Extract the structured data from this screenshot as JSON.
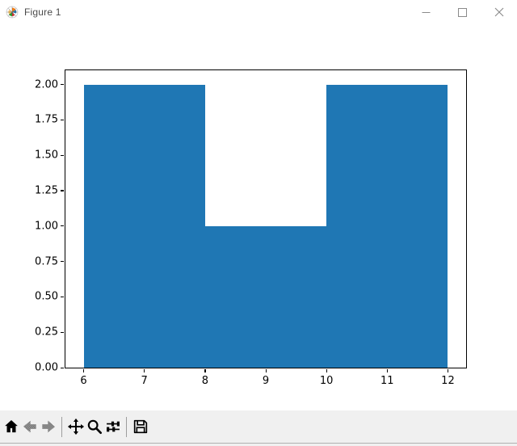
{
  "window": {
    "title": "Figure 1",
    "controls": [
      {
        "name": "minimize"
      },
      {
        "name": "maximize"
      },
      {
        "name": "close"
      }
    ]
  },
  "chart_data": {
    "type": "bar",
    "title": "",
    "xlabel": "",
    "ylabel": "",
    "bars": [
      {
        "x0": 6,
        "x1": 8,
        "value": 2
      },
      {
        "x0": 8,
        "x1": 10,
        "value": 1
      },
      {
        "x0": 10,
        "x1": 12,
        "value": 2
      }
    ],
    "x_tick_values": [
      6,
      7,
      8,
      9,
      10,
      11,
      12
    ],
    "x_tick_labels": [
      "6",
      "7",
      "8",
      "9",
      "10",
      "11",
      "12"
    ],
    "y_tick_values": [
      0,
      0.25,
      0.5,
      0.75,
      1,
      1.25,
      1.5,
      1.75,
      2
    ],
    "y_tick_labels": [
      "0.00",
      "0.25",
      "0.50",
      "0.75",
      "1.00",
      "1.25",
      "1.50",
      "1.75",
      "2.00"
    ],
    "xlim": [
      5.7,
      12.3
    ],
    "ylim": [
      0,
      2.1
    ],
    "bar_color": "#1f77b4",
    "grid": false,
    "legend": null
  },
  "toolbar": {
    "background": "#f0f0f0",
    "items": [
      {
        "type": "button",
        "name": "home",
        "icon": "home-icon",
        "enabled": true
      },
      {
        "type": "button",
        "name": "back",
        "icon": "back-arrow-icon",
        "enabled": false
      },
      {
        "type": "button",
        "name": "forward",
        "icon": "forward-arrow-icon",
        "enabled": false
      },
      {
        "type": "separator"
      },
      {
        "type": "button",
        "name": "pan",
        "icon": "pan-move-icon",
        "enabled": true
      },
      {
        "type": "button",
        "name": "zoom-to-rect",
        "icon": "zoom-rect-icon",
        "enabled": true
      },
      {
        "type": "button",
        "name": "configure-subplots",
        "icon": "sliders-icon",
        "enabled": true
      },
      {
        "type": "separator"
      },
      {
        "type": "button",
        "name": "save",
        "icon": "save-floppy-icon",
        "enabled": true
      }
    ]
  }
}
